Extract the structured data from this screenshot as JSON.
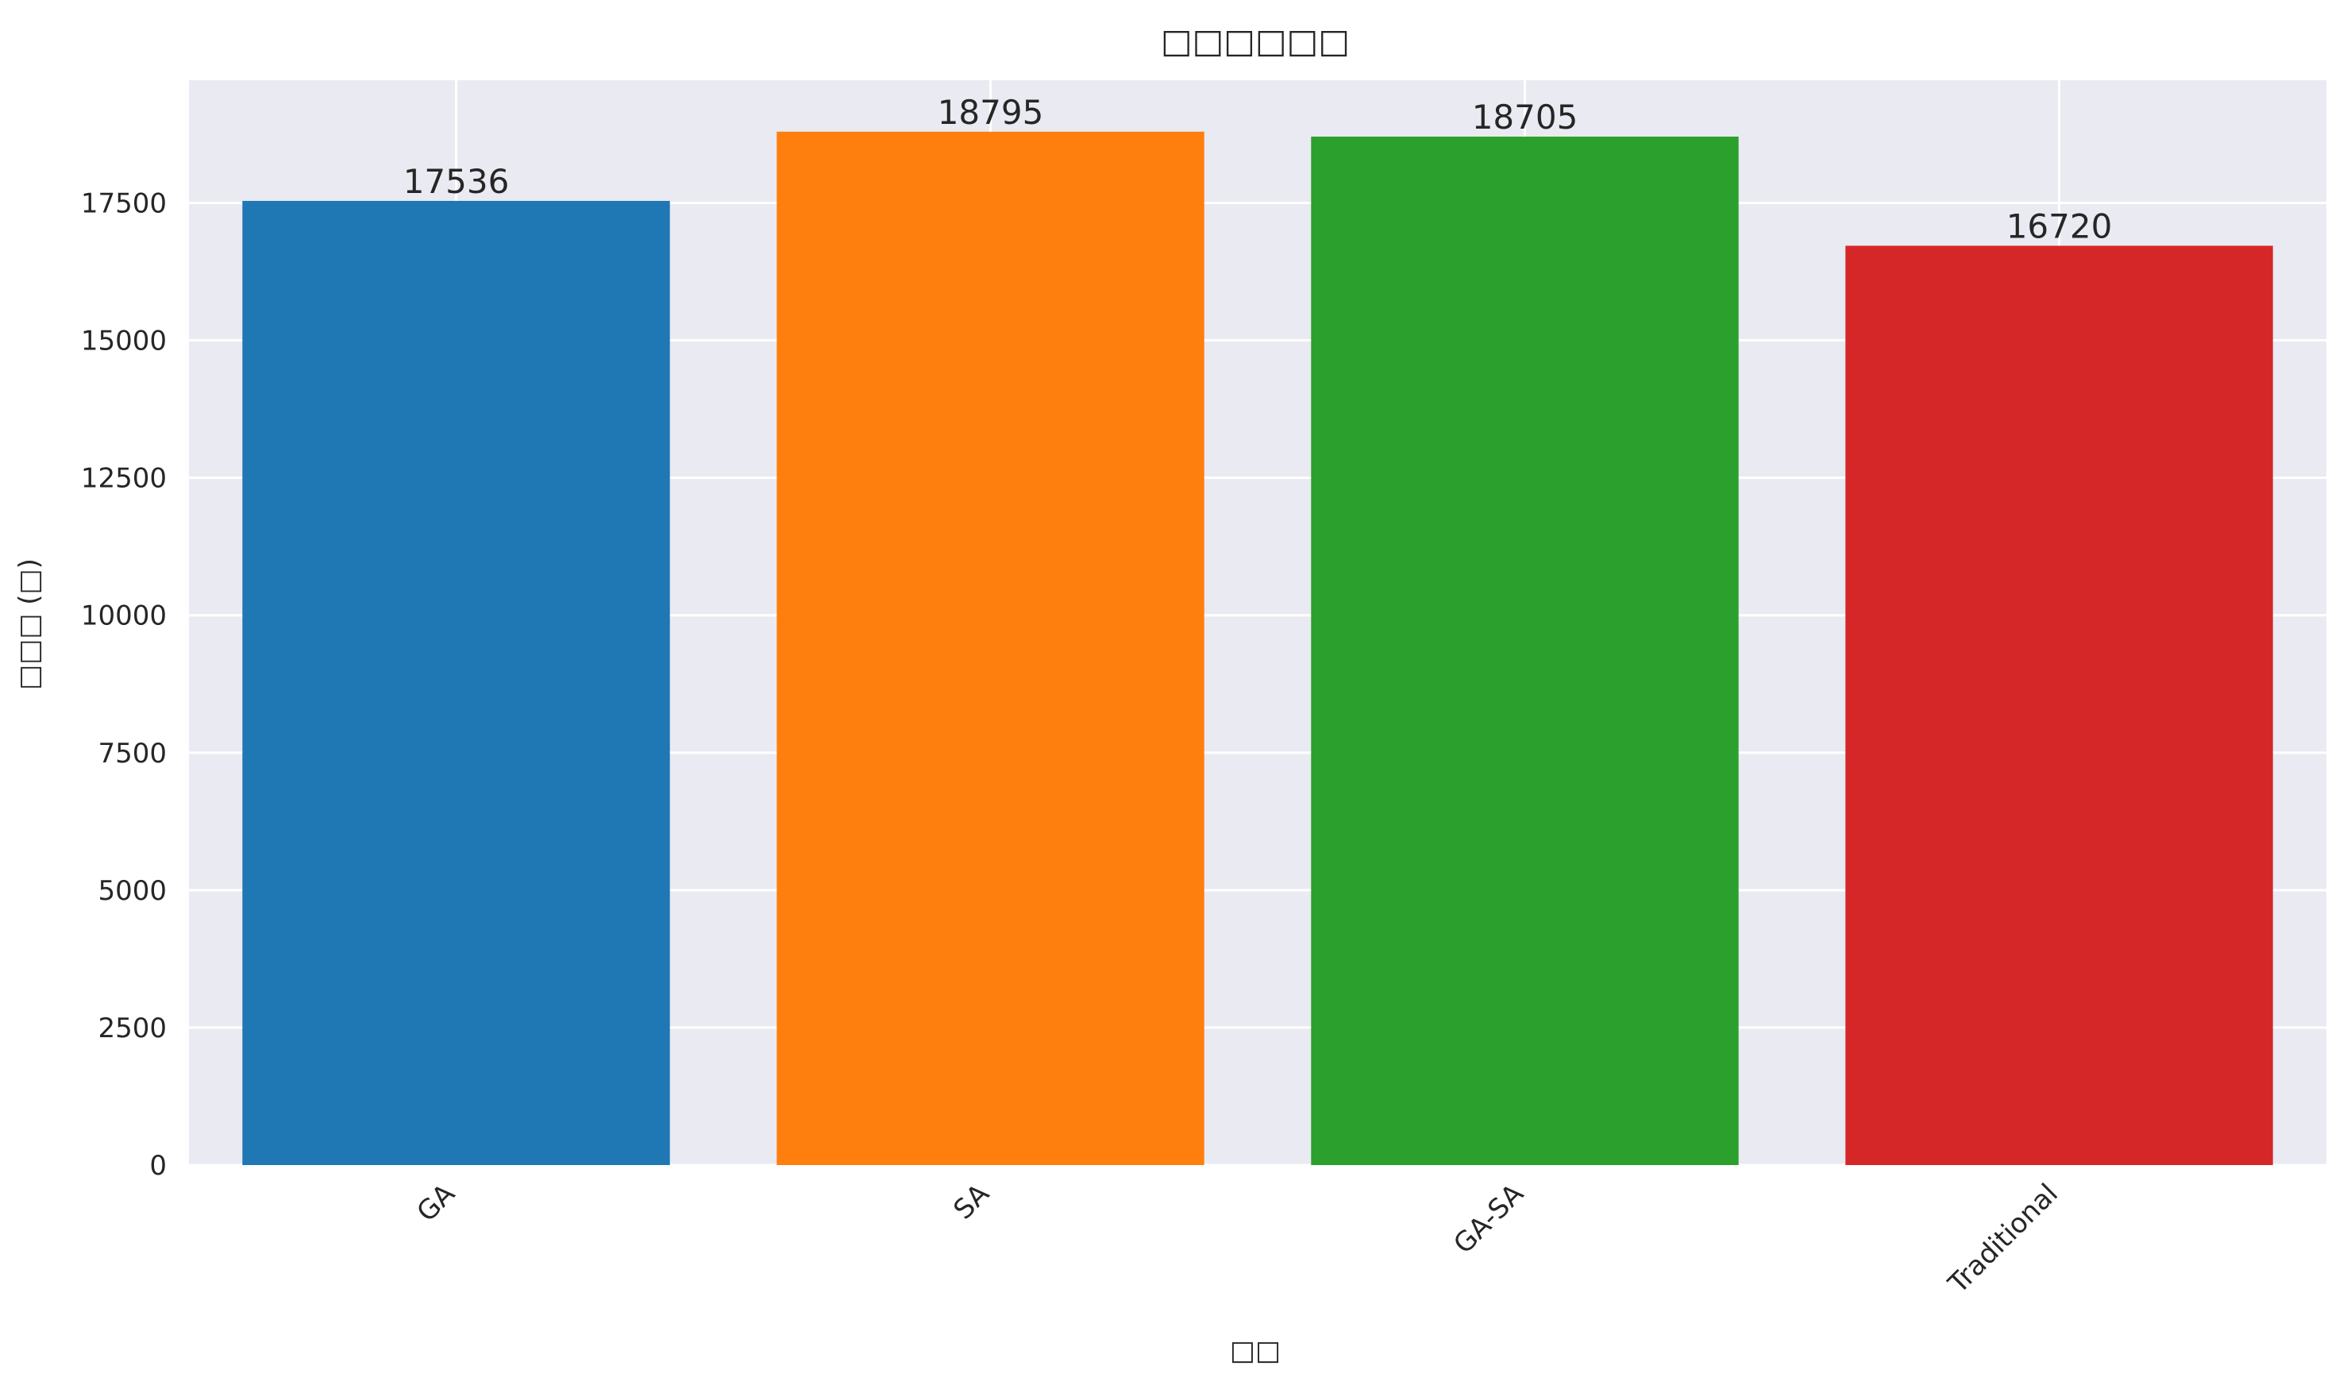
{
  "chart_data": {
    "type": "bar",
    "title": "□□□□□□",
    "xlabel": "□□",
    "ylabel": "□□□ (□)",
    "categories": [
      "GA",
      "SA",
      "GA-SA",
      "Traditional"
    ],
    "values": [
      17536,
      18795,
      18705,
      16720
    ],
    "value_labels": [
      "17536",
      "18795",
      "18705",
      "16720"
    ],
    "colors": [
      "#1f77b4",
      "#ff7f0e",
      "#2ca02c",
      "#d62728"
    ],
    "ylim": [
      0,
      19731
    ],
    "yticks": [
      0,
      2500,
      5000,
      7500,
      10000,
      12500,
      15000,
      17500
    ],
    "ytick_labels": [
      "0",
      "2500",
      "5000",
      "7500",
      "10000",
      "12500",
      "15000",
      "17500"
    ],
    "grid": true,
    "legend": "none",
    "background_color": "#eaeaf2",
    "grid_color": "#ffffff"
  }
}
